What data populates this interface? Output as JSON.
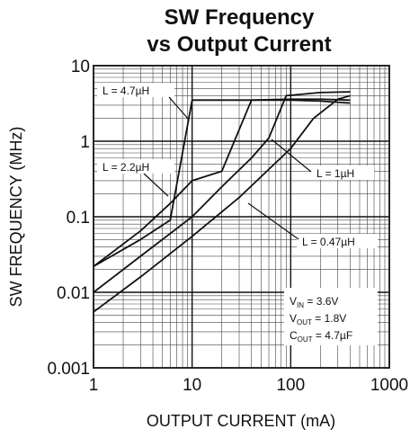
{
  "chart_data": {
    "type": "line",
    "title_line1": "SW Frequency",
    "title_line2": "vs Output Current",
    "xlabel": "OUTPUT CURRENT (mA)",
    "ylabel": "SW FREQUENCY (MHz)",
    "x_scale": "log",
    "y_scale": "log",
    "xlim": [
      1,
      1000
    ],
    "ylim": [
      0.001,
      10
    ],
    "x_ticks": [
      "1",
      "10",
      "100",
      "1000"
    ],
    "y_ticks": [
      "0.001",
      "0.01",
      "0.1",
      "1",
      "10"
    ],
    "grid": true,
    "series": [
      {
        "name": "L = 4.7µH",
        "x": [
          1,
          3,
          6,
          10,
          20,
          50,
          100,
          200,
          400
        ],
        "y": [
          0.022,
          0.05,
          0.09,
          3.5,
          3.5,
          3.5,
          3.5,
          3.4,
          3.2
        ]
      },
      {
        "name": "L = 2.2µH",
        "x": [
          1,
          3,
          6,
          10,
          20,
          40,
          100,
          200,
          400
        ],
        "y": [
          0.022,
          0.065,
          0.15,
          0.3,
          0.4,
          3.5,
          3.6,
          3.6,
          3.5
        ]
      },
      {
        "name": "L = 1µH",
        "x": [
          1,
          3,
          10,
          20,
          40,
          60,
          90,
          200,
          400
        ],
        "y": [
          0.01,
          0.03,
          0.1,
          0.25,
          0.6,
          1.1,
          4.0,
          4.4,
          4.5
        ]
      },
      {
        "name": "L = 0.47µH",
        "x": [
          1,
          3,
          10,
          30,
          100,
          170,
          300,
          400
        ],
        "y": [
          0.0055,
          0.016,
          0.055,
          0.18,
          0.8,
          2.0,
          3.6,
          4.0
        ]
      }
    ],
    "annotations": [
      {
        "series": 0,
        "text": "L = 4.7µH"
      },
      {
        "series": 1,
        "text": "L = 2.2µH"
      },
      {
        "series": 2,
        "text": "L = 1µH"
      },
      {
        "series": 3,
        "text": "L = 0.47µH"
      }
    ],
    "conditions": {
      "vin": {
        "main": "V",
        "sub": "IN",
        "value": " = 3.6V"
      },
      "vout": {
        "main": "V",
        "sub": "OUT",
        "value": " = 1.8V"
      },
      "cout": {
        "main": "C",
        "sub": "OUT",
        "value": " = 4.7µF"
      }
    }
  }
}
